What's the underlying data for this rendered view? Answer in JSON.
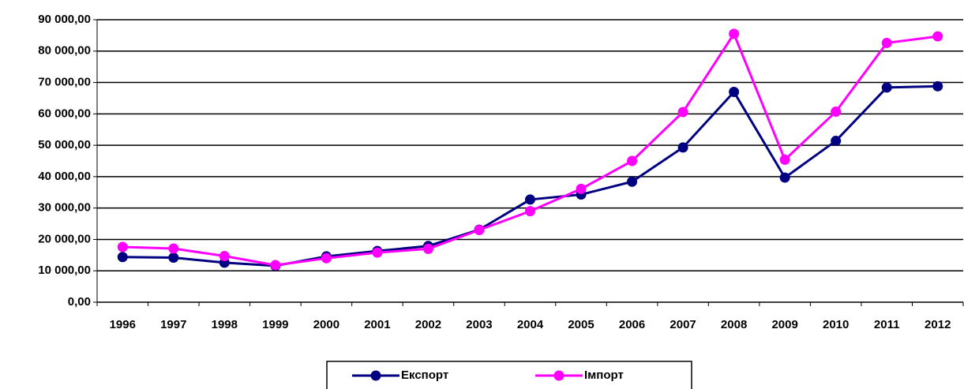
{
  "chart_data": {
    "type": "line",
    "categories": [
      "1996",
      "1997",
      "1998",
      "1999",
      "2000",
      "2001",
      "2002",
      "2003",
      "2004",
      "2005",
      "2006",
      "2007",
      "2008",
      "2009",
      "2010",
      "2011",
      "2012"
    ],
    "series": [
      {
        "name": "Експорт",
        "color": "#000080",
        "values": [
          14400,
          14200,
          12600,
          11600,
          14600,
          16300,
          17900,
          23100,
          32700,
          34300,
          38400,
          49300,
          67000,
          39700,
          51400,
          68400,
          68800
        ]
      },
      {
        "name": "Імпорт",
        "color": "#ff00ff",
        "values": [
          17600,
          17100,
          14700,
          11800,
          14000,
          15800,
          17000,
          23000,
          29000,
          36100,
          45000,
          60600,
          85500,
          45400,
          60700,
          82600,
          84700
        ]
      }
    ],
    "ylim": [
      0,
      90000
    ],
    "yticks": [
      {
        "value": 0,
        "label": "0,00"
      },
      {
        "value": 10000,
        "label": "10 000,00"
      },
      {
        "value": 20000,
        "label": "20 000,00"
      },
      {
        "value": 30000,
        "label": "30 000,00"
      },
      {
        "value": 40000,
        "label": "40 000,00"
      },
      {
        "value": 50000,
        "label": "50 000,00"
      },
      {
        "value": 60000,
        "label": "60 000,00"
      },
      {
        "value": 70000,
        "label": "70 000,00"
      },
      {
        "value": 80000,
        "label": "80 000,00"
      },
      {
        "value": 90000,
        "label": "90 000,00"
      }
    ],
    "grid": true,
    "legend": "bottom"
  }
}
